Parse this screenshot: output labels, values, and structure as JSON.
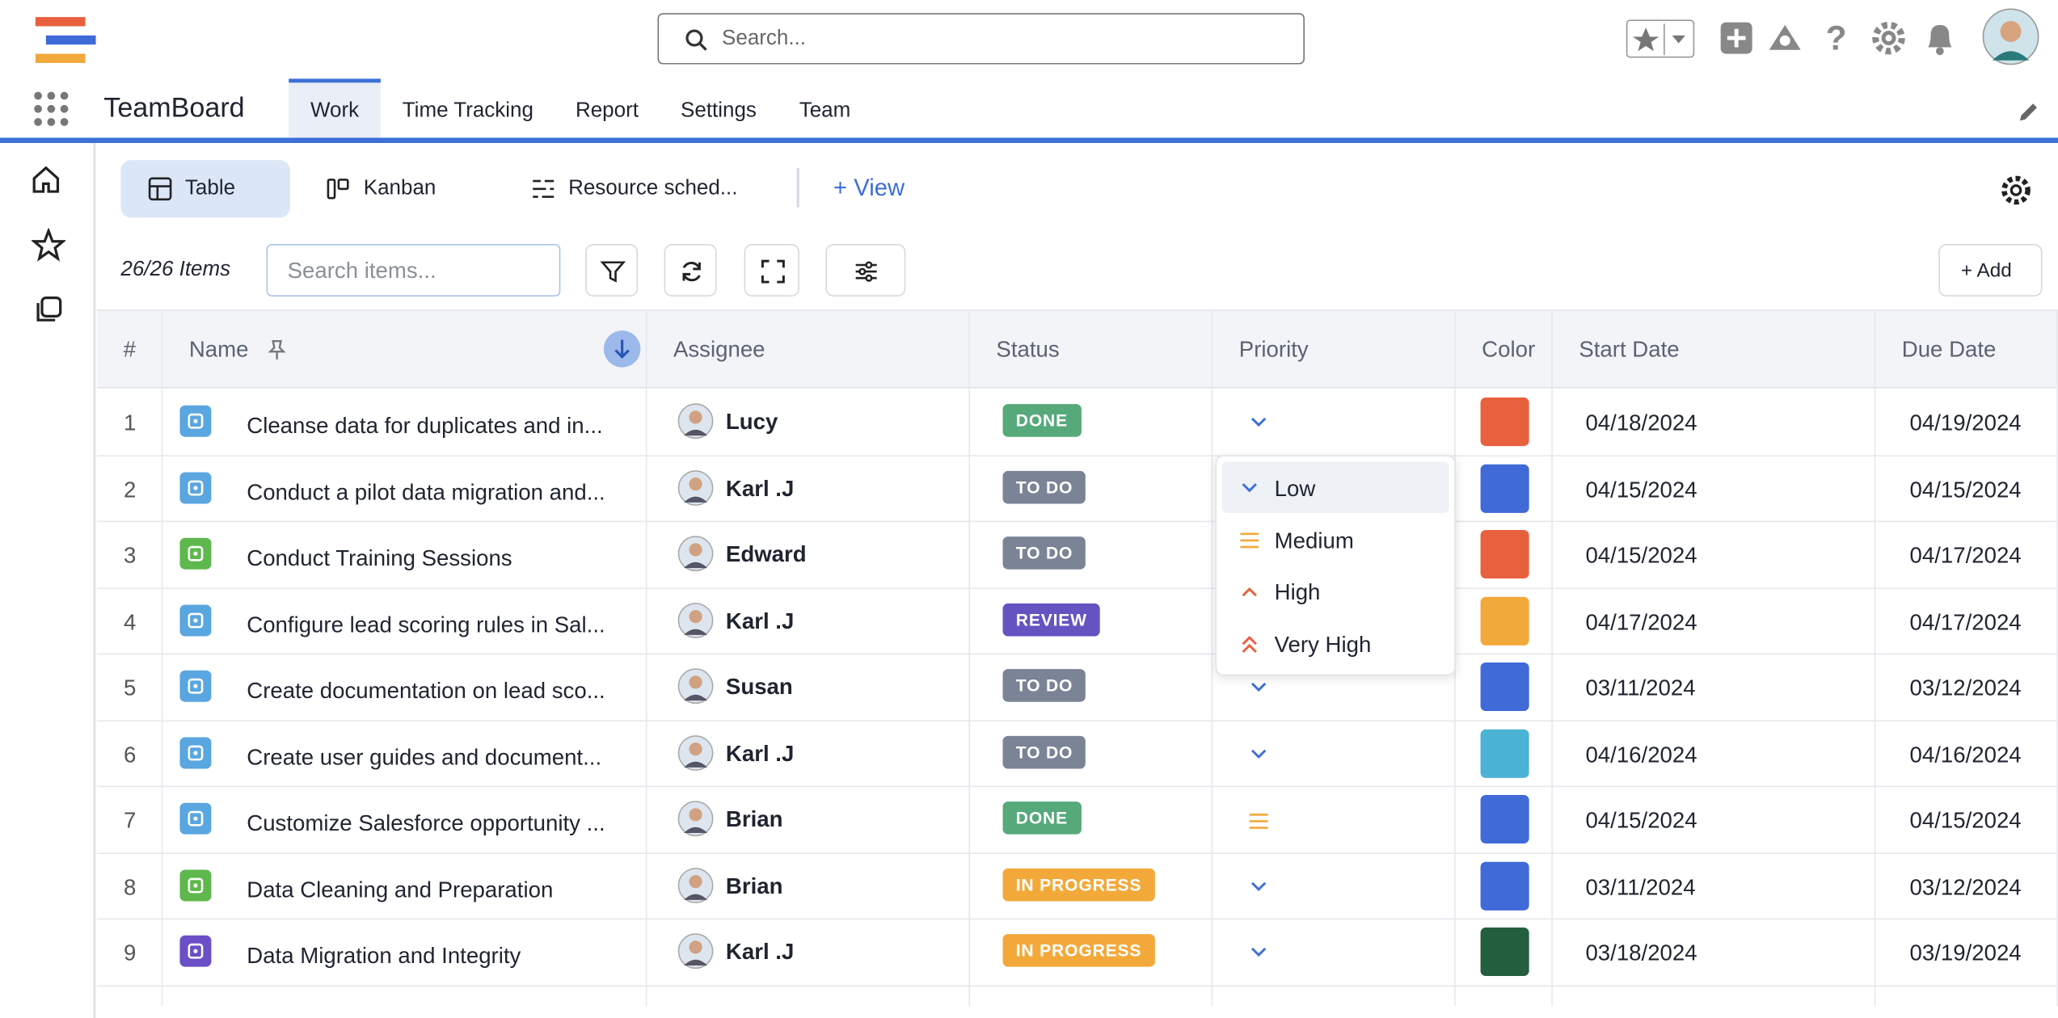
{
  "header": {
    "search_placeholder": "Search..."
  },
  "nav": {
    "app_name": "TeamBoard",
    "tabs": [
      "Work",
      "Time Tracking",
      "Report",
      "Settings",
      "Team"
    ]
  },
  "views": {
    "tabs": [
      "Table",
      "Kanban",
      "Resource sched..."
    ],
    "add_view": "View"
  },
  "toolbar": {
    "item_count": "26/26 Items",
    "search_placeholder": "Search items...",
    "add": "Add"
  },
  "status_colors": {
    "DONE": "#56a97b",
    "TO DO": "#7b8396",
    "REVIEW": "#6553c2",
    "IN PROGRESS": "#f3a93a"
  },
  "table": {
    "columns": [
      "#",
      "Name",
      "Assignee",
      "Status",
      "Priority",
      "Color",
      "Start Date",
      "Due Date"
    ],
    "rows": [
      {
        "num": 1,
        "name": "Cleanse data for duplicates and in...",
        "icon_color": "#5aa6e0",
        "assignee": "Lucy",
        "status": "DONE",
        "priority": "Low",
        "color": "#e8613f",
        "start": "04/18/2024",
        "due": "04/19/2024"
      },
      {
        "num": 2,
        "name": "Conduct a pilot data migration and...",
        "icon_color": "#5aa6e0",
        "assignee": "Karl .J",
        "status": "TO DO",
        "priority": null,
        "color": "#3f6ad8",
        "start": "04/15/2024",
        "due": "04/15/2024"
      },
      {
        "num": 3,
        "name": "Conduct Training Sessions",
        "icon_color": "#5fb84d",
        "assignee": "Edward",
        "status": "TO DO",
        "priority": null,
        "color": "#e8613f",
        "start": "04/15/2024",
        "due": "04/17/2024"
      },
      {
        "num": 4,
        "name": "Configure lead scoring rules in Sal...",
        "icon_color": "#5aa6e0",
        "assignee": "Karl .J",
        "status": "REVIEW",
        "priority": null,
        "color": "#f2a93b",
        "start": "04/17/2024",
        "due": "04/17/2024"
      },
      {
        "num": 5,
        "name": "Create documentation on lead sco...",
        "icon_color": "#5aa6e0",
        "assignee": "Susan",
        "status": "TO DO",
        "priority": "Low",
        "color": "#3f6ad8",
        "start": "03/11/2024",
        "due": "03/12/2024"
      },
      {
        "num": 6,
        "name": "Create user guides and document...",
        "icon_color": "#5aa6e0",
        "assignee": "Karl .J",
        "status": "TO DO",
        "priority": "Low",
        "color": "#4bb3d6",
        "start": "04/16/2024",
        "due": "04/16/2024"
      },
      {
        "num": 7,
        "name": "Customize Salesforce opportunity ...",
        "icon_color": "#5aa6e0",
        "assignee": "Brian",
        "status": "DONE",
        "priority": "Medium",
        "color": "#3f6ad8",
        "start": "04/15/2024",
        "due": "04/15/2024"
      },
      {
        "num": 8,
        "name": "Data Cleaning and Preparation",
        "icon_color": "#5fb84d",
        "assignee": "Brian",
        "status": "IN PROGRESS",
        "priority": "Low",
        "color": "#3f6ad8",
        "start": "03/11/2024",
        "due": "03/12/2024"
      },
      {
        "num": 9,
        "name": "Data Migration and Integrity",
        "icon_color": "#6a4fc7",
        "assignee": "Karl .J",
        "status": "IN PROGRESS",
        "priority": "Low",
        "color": "#235e3f",
        "start": "03/18/2024",
        "due": "03/19/2024"
      }
    ]
  },
  "priority_dropdown": {
    "options": [
      "Low",
      "Medium",
      "High",
      "Very High"
    ]
  }
}
